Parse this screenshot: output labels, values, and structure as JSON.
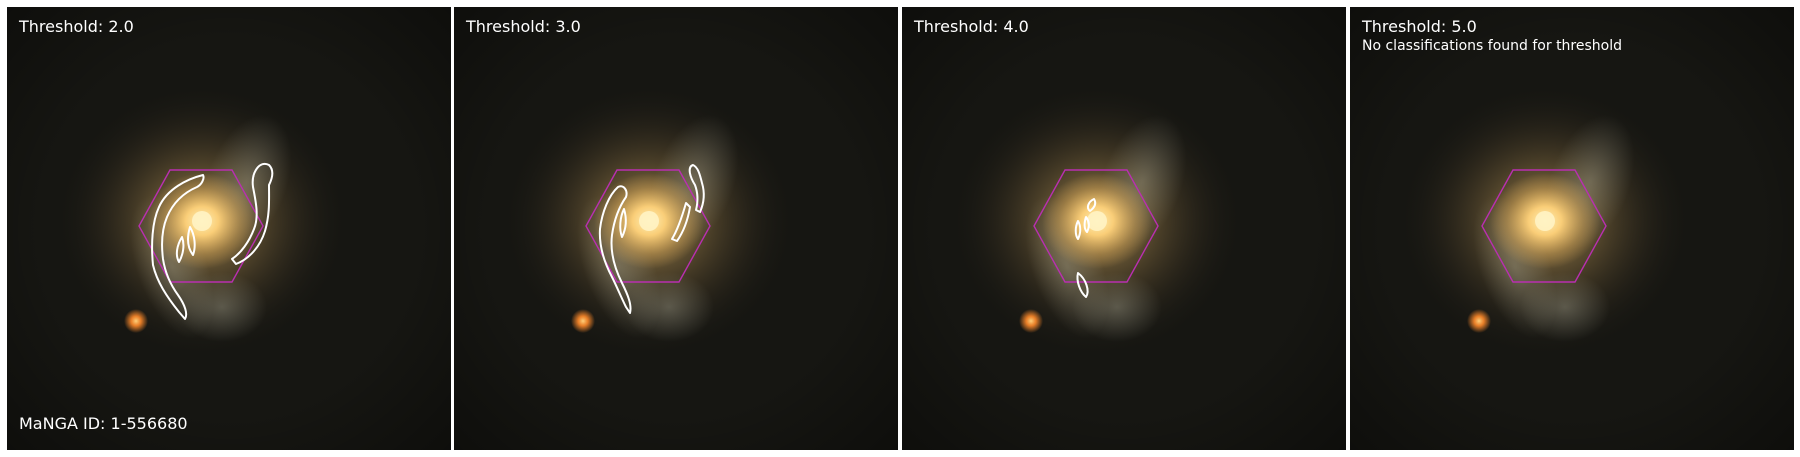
{
  "figure": {
    "manga_id_label": "MaNGA ID: 1-556680",
    "panels": [
      {
        "title": "Threshold: 2.0",
        "note": ""
      },
      {
        "title": "Threshold: 3.0",
        "note": ""
      },
      {
        "title": "Threshold: 4.0",
        "note": ""
      },
      {
        "title": "Threshold: 5.0",
        "note": "No classifications found for threshold"
      }
    ]
  },
  "colors": {
    "sky_background": "#121210",
    "galaxy_core": "#ffd27a",
    "galaxy_halo": "#b08a4a",
    "foreground_star": "#ff8a2a",
    "ifu_hexagon": "#b92fb0",
    "contour": "#ffffff",
    "label_text": "#ffffff"
  },
  "icons": {
    "ifu_footprint": "hexagon-outline",
    "spiral_arm_contour": "contour-outline"
  }
}
